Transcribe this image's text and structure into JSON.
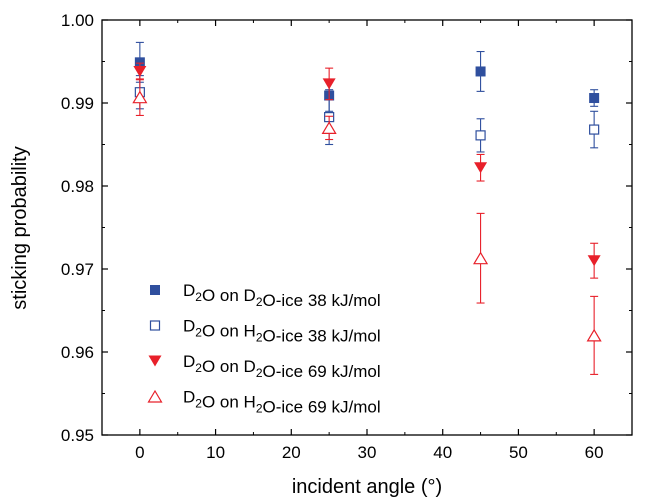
{
  "chart_data": {
    "type": "scatter",
    "xlabel": "incident angle (°)",
    "ylabel": "sticking probability",
    "xlim": [
      -5,
      65
    ],
    "ylim": [
      0.95,
      1.0
    ],
    "x_ticks": [
      "0",
      "10",
      "20",
      "30",
      "40",
      "50",
      "60"
    ],
    "y_ticks": [
      "0.95",
      "0.96",
      "0.97",
      "0.98",
      "0.99",
      "1.00"
    ],
    "x_tick_values": [
      0,
      10,
      20,
      30,
      40,
      50,
      60
    ],
    "y_tick_values": [
      0.95,
      0.96,
      0.97,
      0.98,
      0.99,
      1.0
    ],
    "legend_position": "bottom-left",
    "series": [
      {
        "name": "D2O on D2O-ice 38 kJ/mol",
        "legend": {
          "s1": "D",
          "sub1": "2",
          "s2": "O on D",
          "sub2": "2",
          "s3": "O-ice 38 kJ/mol"
        },
        "marker": "square-filled",
        "color": "#2f4f9e",
        "points": [
          {
            "x": 0,
            "y": 0.9949,
            "err": 0.0024
          },
          {
            "x": 25,
            "y": 0.9909,
            "err": 0.0019
          },
          {
            "x": 45,
            "y": 0.9938,
            "err": 0.0024
          },
          {
            "x": 60,
            "y": 0.9906,
            "err": 0.001
          }
        ]
      },
      {
        "name": "D2O on H2O-ice 38 kJ/mol",
        "legend": {
          "s1": "D",
          "sub1": "2",
          "s2": "O on H",
          "sub2": "2",
          "s3": "O-ice 38 kJ/mol"
        },
        "marker": "square-open",
        "color": "#2f4f9e",
        "points": [
          {
            "x": 0,
            "y": 0.9913,
            "err": 0.002
          },
          {
            "x": 25,
            "y": 0.9883,
            "err": 0.0033
          },
          {
            "x": 45,
            "y": 0.9861,
            "err": 0.002
          },
          {
            "x": 60,
            "y": 0.9868,
            "err": 0.0022
          }
        ]
      },
      {
        "name": "D2O on D2O-ice 69 kJ/mol",
        "legend": {
          "s1": "D",
          "sub1": "2",
          "s2": "O on D",
          "sub2": "2",
          "s3": "O-ice 69 kJ/mol"
        },
        "marker": "triangle-down-filled",
        "color": "#e8202a",
        "points": [
          {
            "x": 0,
            "y": 0.9938,
            "err": 0.001
          },
          {
            "x": 25,
            "y": 0.9923,
            "err": 0.0019
          },
          {
            "x": 45,
            "y": 0.9822,
            "err": 0.0016
          },
          {
            "x": 60,
            "y": 0.971,
            "err": 0.0021
          }
        ]
      },
      {
        "name": "D2O on H2O-ice 69 kJ/mol",
        "legend": {
          "s1": "D",
          "sub1": "2",
          "s2": "O on H",
          "sub2": "2",
          "s3": "O-ice 69 kJ/mol"
        },
        "marker": "triangle-up-open",
        "color": "#e8202a",
        "points": [
          {
            "x": 0,
            "y": 0.9907,
            "err": 0.0022
          },
          {
            "x": 25,
            "y": 0.987,
            "err": 0.0014
          },
          {
            "x": 45,
            "y": 0.9713,
            "err": 0.0054
          },
          {
            "x": 60,
            "y": 0.962,
            "err": 0.0047
          }
        ]
      }
    ]
  }
}
